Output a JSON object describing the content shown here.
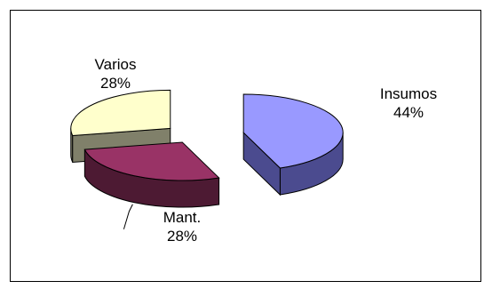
{
  "chart_data": {
    "type": "pie",
    "title": "",
    "slices": [
      {
        "label": "Insumos",
        "value": 44,
        "percent_label": "44%",
        "color": "#9999FF",
        "side_color": "#4B4B8F"
      },
      {
        "label": "Mant.",
        "value": 28,
        "percent_label": "28%",
        "color": "#993366",
        "side_color": "#4D1A33"
      },
      {
        "label": "Varios",
        "value": 28,
        "percent_label": "28%",
        "color": "#FFFFCC",
        "side_color": "#80806A"
      }
    ],
    "legend": "none",
    "exploded": true,
    "three_d": true
  }
}
